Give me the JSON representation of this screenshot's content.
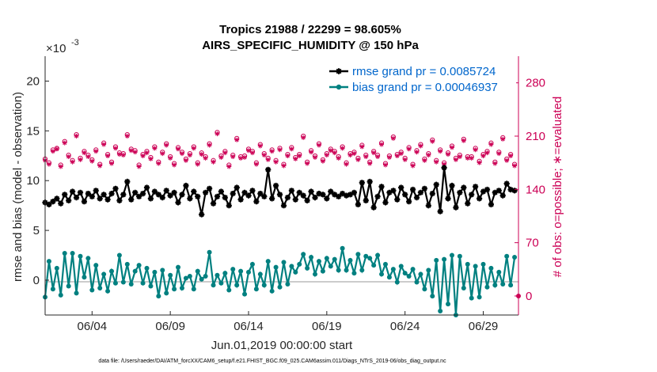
{
  "chart_data": {
    "type": "line",
    "title": "Tropics 21988 / 22299 = 98.605%",
    "subtitle": "AIRS_SPECIFIC_HUMIDITY @ 150 hPa",
    "xlabel": "Jun.01,2019 00:00:00 start",
    "ylabel": "rmse and bias (model - observation)",
    "y2label": "# of obs: o=possible; ∗=evaluated",
    "y_multiplier": "×10",
    "y_multiplier_exp": "-3",
    "xlim": [
      1.0,
      31.25
    ],
    "ylim": [
      -3.5,
      22.5
    ],
    "y2lim": [
      -25,
      315
    ],
    "x_ticks": [
      4,
      9,
      14,
      19,
      24,
      29
    ],
    "x_tick_labels": [
      "06/04",
      "06/09",
      "06/14",
      "06/19",
      "06/24",
      "06/29"
    ],
    "y_ticks": [
      0,
      5,
      10,
      15,
      20
    ],
    "y_tick_labels": [
      "0",
      "5",
      "10",
      "15",
      "20"
    ],
    "y2_ticks": [
      0,
      70,
      140,
      210,
      280
    ],
    "y2_tick_labels": [
      "0",
      "70",
      "140",
      "210",
      "280"
    ],
    "grid": false,
    "legend_position": "top-right",
    "colors": {
      "rmse": "#000000",
      "bias": "#008080",
      "obs": "#cc0055",
      "zero_line": "#bbbbbb",
      "legend_text": "#0066cc"
    },
    "series": [
      {
        "name": "rmse grand pr = 0.0085724",
        "axis": "left",
        "x": [
          1.0,
          1.25,
          1.5,
          1.75,
          2.0,
          2.25,
          2.5,
          2.75,
          3.0,
          3.25,
          3.5,
          3.75,
          4.0,
          4.25,
          4.5,
          4.75,
          5.0,
          5.25,
          5.5,
          5.75,
          6.0,
          6.25,
          6.5,
          6.75,
          7.0,
          7.25,
          7.5,
          7.75,
          8.0,
          8.25,
          8.5,
          8.75,
          9.0,
          9.25,
          9.5,
          9.75,
          10.0,
          10.25,
          10.5,
          10.75,
          11.0,
          11.25,
          11.5,
          11.75,
          12.0,
          12.25,
          12.5,
          12.75,
          13.0,
          13.25,
          13.5,
          13.75,
          14.0,
          14.25,
          14.5,
          14.75,
          15.0,
          15.25,
          15.5,
          15.75,
          16.0,
          16.25,
          16.5,
          16.75,
          17.0,
          17.25,
          17.5,
          17.75,
          18.0,
          18.25,
          18.5,
          18.75,
          19.0,
          19.25,
          19.5,
          19.75,
          20.0,
          20.25,
          20.5,
          20.75,
          21.0,
          21.25,
          21.5,
          21.75,
          22.0,
          22.25,
          22.5,
          22.75,
          23.0,
          23.25,
          23.5,
          23.75,
          24.0,
          24.25,
          24.5,
          24.75,
          25.0,
          25.25,
          25.5,
          25.75,
          26.0,
          26.25,
          26.5,
          26.75,
          27.0,
          27.25,
          27.5,
          27.75,
          28.0,
          28.25,
          28.5,
          28.75,
          29.0,
          29.25,
          29.5,
          29.75,
          30.0,
          30.25,
          30.5,
          30.75,
          31.0
        ],
        "values": [
          7.8,
          7.6,
          7.9,
          8.2,
          7.7,
          8.6,
          8.0,
          8.9,
          8.3,
          8.8,
          7.9,
          8.7,
          8.4,
          9.0,
          8.2,
          8.6,
          8.1,
          8.7,
          9.2,
          8.0,
          8.6,
          9.9,
          8.1,
          8.8,
          8.4,
          8.7,
          9.3,
          8.2,
          8.9,
          8.6,
          8.3,
          9.0,
          8.5,
          8.8,
          7.8,
          8.6,
          9.5,
          8.2,
          8.9,
          8.4,
          6.6,
          8.8,
          9.2,
          7.7,
          8.4,
          8.9,
          8.3,
          7.5,
          8.7,
          9.3,
          8.1,
          8.8,
          8.5,
          9.0,
          7.9,
          8.7,
          8.4,
          11.1,
          8.2,
          9.5,
          8.6,
          7.5,
          8.3,
          9.0,
          8.1,
          8.8,
          8.5,
          8.0,
          8.9,
          8.3,
          8.7,
          8.6,
          8.2,
          8.9,
          8.6,
          8.4,
          8.7,
          8.5,
          8.6,
          8.8,
          7.6,
          9.8,
          8.0,
          9.9,
          7.3,
          8.4,
          9.4,
          7.8,
          8.8,
          9.0,
          8.1,
          9.3,
          8.6,
          7.9,
          9.1,
          8.3,
          8.8,
          9.2,
          7.5,
          8.7,
          9.6,
          6.9,
          11.3,
          8.2,
          9.5,
          7.3,
          8.8,
          9.3,
          7.7,
          8.6,
          9.4,
          8.2,
          8.9,
          9.1,
          7.6,
          8.8,
          9.0,
          8.5,
          9.7,
          9.1,
          9.0
        ]
      },
      {
        "name": "bias grand pr = 0.00046937",
        "axis": "left",
        "x": [
          1.0,
          1.25,
          1.5,
          1.75,
          2.0,
          2.25,
          2.5,
          2.75,
          3.0,
          3.25,
          3.5,
          3.75,
          4.0,
          4.25,
          4.5,
          4.75,
          5.0,
          5.25,
          5.5,
          5.75,
          6.0,
          6.25,
          6.5,
          6.75,
          7.0,
          7.25,
          7.5,
          7.75,
          8.0,
          8.25,
          8.5,
          8.75,
          9.0,
          9.25,
          9.5,
          9.75,
          10.0,
          10.25,
          10.5,
          10.75,
          11.0,
          11.25,
          11.5,
          11.75,
          12.0,
          12.25,
          12.5,
          12.75,
          13.0,
          13.25,
          13.5,
          13.75,
          14.0,
          14.25,
          14.5,
          14.75,
          15.0,
          15.25,
          15.5,
          15.75,
          16.0,
          16.25,
          16.5,
          16.75,
          17.0,
          17.25,
          17.5,
          17.75,
          18.0,
          18.25,
          18.5,
          18.75,
          19.0,
          19.25,
          19.5,
          19.75,
          20.0,
          20.25,
          20.5,
          20.75,
          21.0,
          21.25,
          21.5,
          21.75,
          22.0,
          22.25,
          22.5,
          22.75,
          23.0,
          23.25,
          23.5,
          23.75,
          24.0,
          24.25,
          24.5,
          24.75,
          25.0,
          25.25,
          25.5,
          25.75,
          26.0,
          26.25,
          26.5,
          26.75,
          27.0,
          27.25,
          27.5,
          27.75,
          28.0,
          28.25,
          28.5,
          28.75,
          29.0,
          29.25,
          29.5,
          29.75,
          30.0,
          30.25,
          30.5,
          30.75,
          31.0
        ],
        "values": [
          -1.7,
          1.9,
          -0.9,
          1.2,
          -1.5,
          2.7,
          -0.6,
          2.7,
          -1.3,
          2.4,
          0.3,
          2.2,
          -1.0,
          1.5,
          -0.8,
          0.6,
          -1.1,
          0.9,
          -0.3,
          2.5,
          -0.2,
          1.6,
          -0.4,
          0.9,
          1.5,
          -0.3,
          1.2,
          -0.6,
          0.8,
          -1.6,
          1.0,
          -1.3,
          0.5,
          -0.9,
          1.3,
          -0.8,
          0.2,
          0.4,
          -0.9,
          0.9,
          0.1,
          0.4,
          2.8,
          -0.5,
          0.5,
          -0.3,
          0.7,
          -1.0,
          1.1,
          -0.5,
          0.9,
          -1.4,
          0.8,
          1.6,
          -0.9,
          0.6,
          -0.5,
          1.9,
          -1.1,
          1.3,
          -0.7,
          1.8,
          -0.4,
          1.4,
          0.8,
          1.6,
          2.6,
          1.2,
          2.3,
          0.6,
          1.9,
          0.9,
          2.2,
          1.4,
          2.1,
          1.0,
          3.2,
          1.0,
          2.0,
          0.7,
          2.6,
          1.0,
          2.4,
          2.2,
          1.5,
          2.5,
          0.6,
          1.6,
          0.3,
          1.1,
          -0.2,
          1.4,
          0.7,
          0.4,
          1.1,
          -0.2,
          0.6,
          -0.9,
          1.0,
          -1.6,
          2.0,
          -3.1,
          2.1,
          -2.4,
          2.5,
          -3.5,
          2.4,
          -0.8,
          1.6,
          -1.8,
          1.4,
          -1.7,
          1.6,
          -0.7,
          1.2,
          -0.5,
          0.8,
          -0.4,
          2.4,
          -0.5,
          2.3
        ]
      },
      {
        "name": "obs possible (o)",
        "axis": "right",
        "x": [
          1.0,
          1.25,
          1.5,
          1.75,
          2.0,
          2.25,
          2.5,
          2.75,
          3.0,
          3.25,
          3.5,
          3.75,
          4.0,
          4.25,
          4.5,
          4.75,
          5.0,
          5.25,
          5.5,
          5.75,
          6.0,
          6.25,
          6.5,
          6.75,
          7.0,
          7.25,
          7.5,
          7.75,
          8.0,
          8.25,
          8.5,
          8.75,
          9.0,
          9.25,
          9.5,
          9.75,
          10.0,
          10.25,
          10.5,
          10.75,
          11.0,
          11.25,
          11.5,
          11.75,
          12.0,
          12.25,
          12.5,
          12.75,
          13.0,
          13.25,
          13.5,
          13.75,
          14.0,
          14.25,
          14.5,
          14.75,
          15.0,
          15.25,
          15.5,
          15.75,
          16.0,
          16.25,
          16.5,
          16.75,
          17.0,
          17.25,
          17.5,
          17.75,
          18.0,
          18.25,
          18.5,
          18.75,
          19.0,
          19.25,
          19.5,
          19.75,
          20.0,
          20.25,
          20.5,
          20.75,
          21.0,
          21.25,
          21.5,
          21.75,
          22.0,
          22.25,
          22.5,
          22.75,
          23.0,
          23.25,
          23.5,
          23.75,
          24.0,
          24.25,
          24.5,
          24.75,
          25.0,
          25.25,
          25.5,
          25.75,
          26.0,
          26.25,
          26.5,
          26.75,
          27.0,
          27.25,
          27.5,
          27.75,
          28.0,
          28.25,
          28.5,
          28.75,
          29.0,
          29.25,
          29.5,
          29.75,
          30.0,
          30.25,
          30.5,
          30.75,
          31.0
        ],
        "values": [
          180,
          175,
          192,
          194,
          172,
          203,
          185,
          178,
          212,
          181,
          190,
          185,
          179,
          192,
          173,
          201,
          186,
          176,
          196,
          188,
          187,
          212,
          193,
          191,
          172,
          186,
          190,
          182,
          196,
          176,
          189,
          200,
          183,
          174,
          195,
          189,
          180,
          187,
          196,
          175,
          188,
          183,
          200,
          178,
          215,
          184,
          190,
          172,
          185,
          207,
          183,
          184,
          193,
          190,
          175,
          199,
          187,
          181,
          192,
          178,
          194,
          173,
          186,
          195,
          182,
          186,
          210,
          176,
          191,
          184,
          200,
          179,
          187,
          193,
          190,
          183,
          196,
          175,
          187,
          189,
          181,
          198,
          185,
          176,
          190,
          185,
          201,
          174,
          184,
          209,
          186,
          189,
          181,
          195,
          173,
          191,
          199,
          180,
          187,
          205,
          178,
          192,
          175,
          188,
          197,
          181,
          185,
          206,
          183,
          183,
          194,
          177,
          186,
          190,
          201,
          176,
          189,
          208,
          180,
          186,
          173
        ]
      },
      {
        "name": "obs evaluated (*)",
        "axis": "right",
        "x": [
          1.0,
          1.25,
          1.5,
          1.75,
          2.0,
          2.25,
          2.5,
          2.75,
          3.0,
          3.25,
          3.5,
          3.75,
          4.0,
          4.25,
          4.5,
          4.75,
          5.0,
          5.25,
          5.5,
          5.75,
          6.0,
          6.25,
          6.5,
          6.75,
          7.0,
          7.25,
          7.5,
          7.75,
          8.0,
          8.25,
          8.5,
          8.75,
          9.0,
          9.25,
          9.5,
          9.75,
          10.0,
          10.25,
          10.5,
          10.75,
          11.0,
          11.25,
          11.5,
          11.75,
          12.0,
          12.25,
          12.5,
          12.75,
          13.0,
          13.25,
          13.5,
          13.75,
          14.0,
          14.25,
          14.5,
          14.75,
          15.0,
          15.25,
          15.5,
          15.75,
          16.0,
          16.25,
          16.5,
          16.75,
          17.0,
          17.25,
          17.5,
          17.75,
          18.0,
          18.25,
          18.5,
          18.75,
          19.0,
          19.25,
          19.5,
          19.75,
          20.0,
          20.25,
          20.5,
          20.75,
          21.0,
          21.25,
          21.5,
          21.75,
          22.0,
          22.25,
          22.5,
          22.75,
          23.0,
          23.25,
          23.5,
          23.75,
          24.0,
          24.25,
          24.5,
          24.75,
          25.0,
          25.25,
          25.5,
          25.75,
          26.0,
          26.25,
          26.5,
          26.75,
          27.0,
          27.25,
          27.5,
          27.75,
          28.0,
          28.25,
          28.5,
          28.75,
          29.0,
          29.25,
          29.5,
          29.75,
          30.0,
          30.25,
          30.5,
          30.75,
          31.0
        ],
        "values": [
          178,
          173,
          190,
          193,
          170,
          201,
          183,
          176,
          210,
          179,
          188,
          183,
          177,
          190,
          171,
          199,
          184,
          174,
          194,
          186,
          185,
          210,
          191,
          189,
          170,
          184,
          188,
          180,
          194,
          174,
          187,
          198,
          181,
          172,
          193,
          187,
          178,
          185,
          194,
          173,
          186,
          181,
          198,
          176,
          213,
          182,
          188,
          170,
          183,
          205,
          181,
          182,
          191,
          188,
          173,
          197,
          185,
          179,
          190,
          176,
          192,
          171,
          184,
          193,
          180,
          184,
          208,
          174,
          189,
          182,
          198,
          177,
          185,
          191,
          188,
          181,
          194,
          173,
          185,
          187,
          179,
          196,
          183,
          174,
          188,
          183,
          199,
          172,
          182,
          207,
          184,
          187,
          179,
          193,
          171,
          189,
          197,
          178,
          185,
          203,
          176,
          190,
          173,
          186,
          195,
          179,
          183,
          204,
          181,
          181,
          192,
          175,
          184,
          188,
          199,
          174,
          187,
          206,
          178,
          184,
          171
        ]
      }
    ]
  },
  "footer": {
    "file_note": "data file: /Users/raeder/DAI/ATM_forcXX/CAM6_setup/f.e21.FHIST_BGC.f09_025.CAM6assim.011/Diags_NTrS_2019-06/obs_diag_output.nc"
  }
}
